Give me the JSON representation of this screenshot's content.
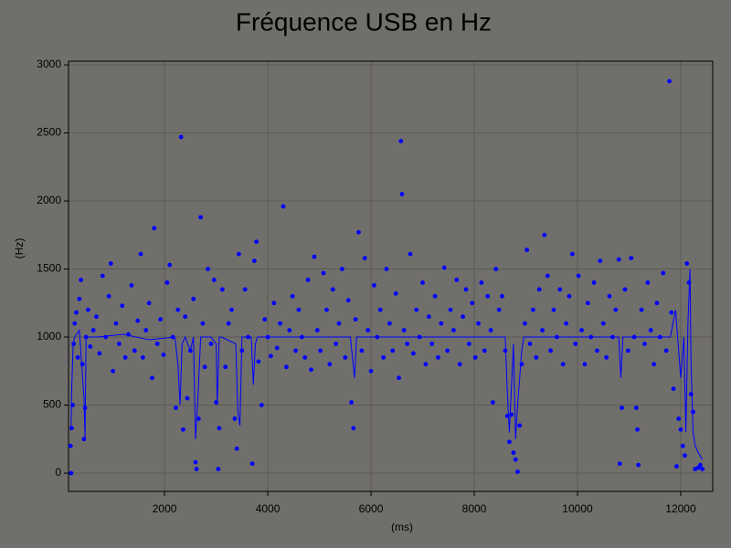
{
  "chart_data": {
    "type": "scatter",
    "title": "Fréquence USB en Hz",
    "xlabel": "(ms)",
    "ylabel": "(Hz)",
    "xlim": [
      140,
      12620
    ],
    "ylim": [
      -134,
      3027
    ],
    "xticks": [
      2000,
      4000,
      6000,
      8000,
      10000,
      12000
    ],
    "yticks": [
      0,
      500,
      1000,
      1500,
      2000,
      2500,
      3000
    ],
    "grid": true,
    "series": [
      {
        "color": "#0000ff",
        "mode": "markers",
        "x": [
          180,
          190,
          200,
          220,
          240,
          260,
          290,
          320,
          350,
          380,
          410,
          440,
          460,
          480,
          520,
          560,
          620,
          680,
          740,
          800,
          860,
          920,
          960,
          1000,
          1060,
          1120,
          1180,
          1240,
          1300,
          1360,
          1420,
          1480,
          1540,
          1580,
          1640,
          1700,
          1760,
          1800,
          1860,
          1920,
          1980,
          2050,
          2100,
          2160,
          2220,
          2260,
          2320,
          2360,
          2400,
          2440,
          2500,
          2560,
          2600,
          2620,
          2660,
          2700,
          2740,
          2780,
          2840,
          2900,
          2960,
          3000,
          3040,
          3060,
          3120,
          3180,
          3240,
          3300,
          3360,
          3400,
          3440,
          3500,
          3560,
          3620,
          3700,
          3740,
          3780,
          3820,
          3880,
          3940,
          4000,
          4060,
          4120,
          4180,
          4240,
          4300,
          4360,
          4420,
          4480,
          4540,
          4600,
          4660,
          4720,
          4780,
          4840,
          4900,
          4960,
          5020,
          5080,
          5140,
          5200,
          5260,
          5320,
          5380,
          5440,
          5500,
          5560,
          5620,
          5660,
          5700,
          5760,
          5820,
          5880,
          5940,
          6000,
          6060,
          6120,
          6180,
          6240,
          6300,
          6360,
          6420,
          6480,
          6540,
          6580,
          6600,
          6640,
          6700,
          6760,
          6820,
          6880,
          6940,
          7000,
          7060,
          7120,
          7180,
          7240,
          7300,
          7360,
          7420,
          7480,
          7540,
          7600,
          7660,
          7720,
          7780,
          7840,
          7900,
          7960,
          8020,
          8080,
          8140,
          8200,
          8260,
          8320,
          8360,
          8420,
          8480,
          8540,
          8600,
          8640,
          8680,
          8720,
          8760,
          8800,
          8840,
          8880,
          8920,
          8980,
          9020,
          9080,
          9140,
          9200,
          9260,
          9320,
          9360,
          9420,
          9480,
          9540,
          9600,
          9660,
          9720,
          9780,
          9840,
          9900,
          9960,
          10020,
          10080,
          10140,
          10200,
          10260,
          10320,
          10380,
          10440,
          10500,
          10560,
          10620,
          10680,
          10740,
          10800,
          10820,
          10860,
          10920,
          10980,
          11040,
          11100,
          11140,
          11160,
          11180,
          11240,
          11300,
          11360,
          11420,
          11480,
          11540,
          11600,
          11660,
          11720,
          11780,
          11820,
          11860,
          11920,
          11960,
          12000,
          12040,
          12080,
          12120,
          12160,
          12200,
          12240,
          12280,
          12340,
          12380,
          12420
        ],
        "values": [
          200,
          0,
          330,
          500,
          950,
          1100,
          1180,
          850,
          1280,
          1420,
          800,
          250,
          480,
          1000,
          1200,
          930,
          1050,
          1150,
          880,
          1450,
          1000,
          1300,
          1540,
          750,
          1100,
          950,
          1230,
          850,
          1020,
          1380,
          900,
          1120,
          1610,
          850,
          1050,
          1250,
          700,
          1800,
          950,
          1130,
          870,
          1400,
          1530,
          1000,
          480,
          1200,
          2470,
          320,
          1150,
          550,
          900,
          1280,
          80,
          30,
          400,
          1880,
          1100,
          780,
          1500,
          950,
          1420,
          520,
          30,
          330,
          1350,
          780,
          1100,
          1200,
          400,
          180,
          1610,
          900,
          1350,
          1000,
          70,
          1560,
          1700,
          820,
          500,
          1130,
          1000,
          860,
          1250,
          920,
          1100,
          1960,
          780,
          1050,
          1300,
          900,
          1200,
          1000,
          850,
          1420,
          760,
          1590,
          1050,
          900,
          1470,
          1200,
          800,
          1350,
          950,
          1100,
          1500,
          850,
          1270,
          520,
          330,
          1130,
          1770,
          900,
          1580,
          1050,
          750,
          1380,
          1000,
          1200,
          850,
          1500,
          1100,
          900,
          1320,
          700,
          2440,
          2050,
          1050,
          950,
          1610,
          880,
          1200,
          1000,
          1400,
          800,
          1150,
          950,
          1300,
          850,
          1100,
          1510,
          900,
          1200,
          1050,
          1420,
          800,
          1150,
          1350,
          950,
          1250,
          850,
          1100,
          1400,
          900,
          1300,
          1050,
          520,
          1500,
          1200,
          1300,
          900,
          420,
          230,
          430,
          150,
          100,
          10,
          350,
          800,
          1100,
          1640,
          950,
          1200,
          850,
          1350,
          1050,
          1750,
          1450,
          900,
          1200,
          1000,
          1350,
          800,
          1100,
          1300,
          1610,
          950,
          1450,
          1050,
          800,
          1250,
          1000,
          1400,
          900,
          1560,
          1100,
          850,
          1300,
          1000,
          1200,
          1570,
          70,
          480,
          1350,
          900,
          1580,
          1000,
          480,
          320,
          60,
          1200,
          950,
          1400,
          1050,
          800,
          1250,
          1000,
          1470,
          900,
          2880,
          1180,
          620,
          50,
          400,
          320,
          200,
          130,
          1540,
          1400,
          580,
          450,
          30,
          40,
          60,
          30
        ]
      },
      {
        "color": "#0000ff",
        "mode": "line",
        "x": [
          190,
          200,
          230,
          260,
          350,
          440,
          460,
          480,
          700,
          1200,
          1700,
          2200,
          2260,
          2300,
          2340,
          2400,
          2500,
          2560,
          2600,
          2640,
          2700,
          2900,
          3000,
          3020,
          3060,
          3100,
          3380,
          3420,
          3460,
          3500,
          3680,
          3720,
          3760,
          3800,
          4500,
          5000,
          5600,
          5680,
          5720,
          6000,
          6600,
          7200,
          7800,
          8400,
          8600,
          8640,
          8680,
          8760,
          8800,
          8840,
          8920,
          8960,
          9500,
          10000,
          10500,
          10800,
          10840,
          10880,
          11200,
          11800,
          11900,
          11960,
          12000,
          12060,
          12100,
          12140,
          12180,
          12200,
          12240,
          12280,
          12340,
          12420
        ],
        "values": [
          330,
          600,
          950,
          1000,
          1050,
          550,
          250,
          1000,
          1000,
          1020,
          980,
          1000,
          800,
          500,
          950,
          1000,
          900,
          1000,
          250,
          500,
          1000,
          1000,
          950,
          500,
          1000,
          1000,
          950,
          450,
          350,
          1000,
          1000,
          650,
          950,
          1000,
          1000,
          1000,
          1000,
          700,
          1000,
          1000,
          1000,
          1000,
          1000,
          1000,
          1000,
          600,
          300,
          950,
          250,
          500,
          900,
          1000,
          1000,
          1000,
          1000,
          1000,
          700,
          1000,
          1000,
          1000,
          1200,
          900,
          700,
          1000,
          300,
          1100,
          1500,
          800,
          300,
          200,
          150,
          100
        ]
      }
    ]
  }
}
